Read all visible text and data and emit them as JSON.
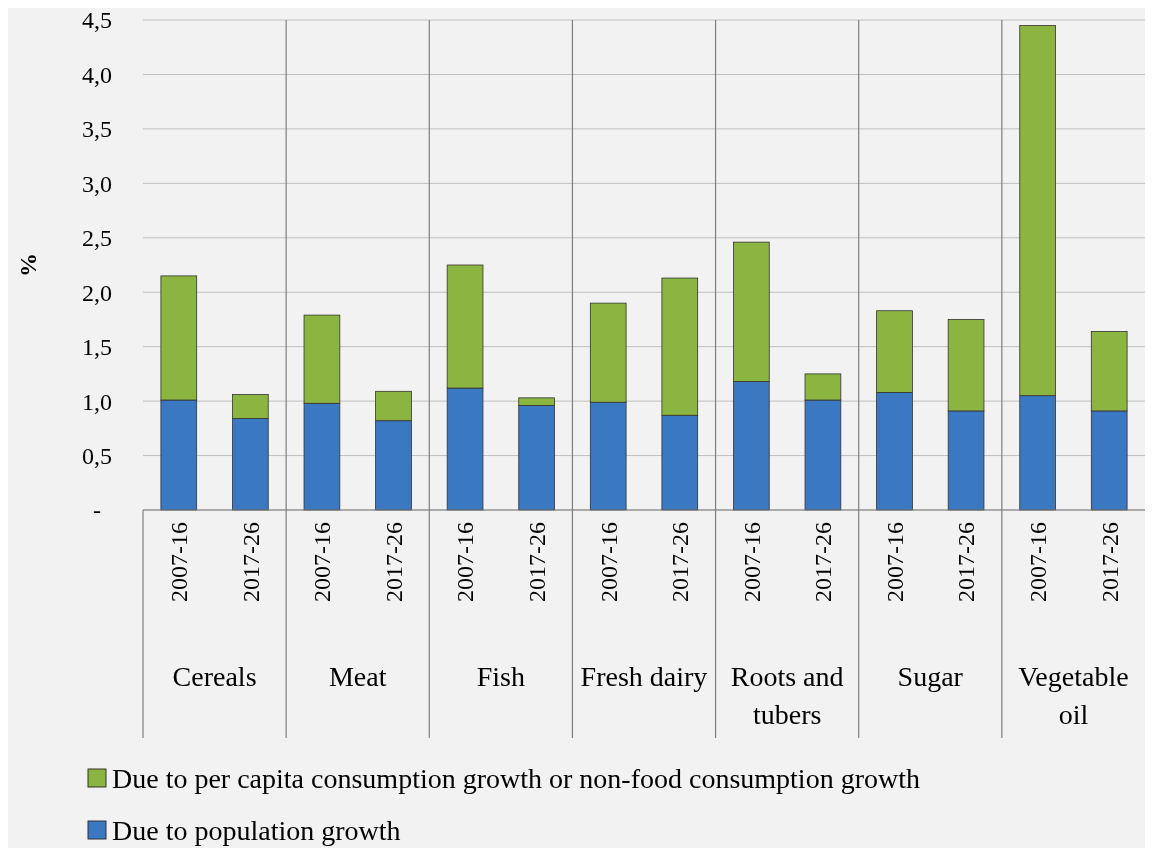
{
  "chart_data": {
    "type": "bar",
    "stacked": true,
    "ylabel": "%",
    "categories": [
      "2007-16",
      "2017-26",
      "2007-16",
      "2017-26",
      "2007-16",
      "2017-26",
      "2007-16",
      "2017-26",
      "2007-16",
      "2017-26",
      "2007-16",
      "2017-26",
      "2007-16",
      "2017-26"
    ],
    "annotations": [
      "Cereals",
      "Meat",
      "Fish",
      "Fresh dairy",
      "Roots and tubers",
      "Sugar",
      "Vegetable oil"
    ],
    "series": [
      {
        "name": "Due to population growth",
        "color": "#3a78c2",
        "values": [
          1.01,
          0.84,
          0.98,
          0.82,
          1.12,
          0.96,
          0.99,
          0.87,
          1.18,
          1.01,
          1.08,
          0.91,
          1.05,
          0.91
        ]
      },
      {
        "name": "Due to per capita consumption growth or non-food consumption growth",
        "color": "#8cb440",
        "values": [
          1.14,
          0.22,
          0.81,
          0.27,
          1.13,
          0.07,
          0.91,
          1.26,
          1.28,
          0.24,
          0.75,
          0.84,
          3.4,
          0.73
        ]
      }
    ],
    "ylim": [
      0,
      4.5
    ],
    "yticks": [
      {
        "value": 0,
        "label": "-"
      },
      {
        "value": 0.5,
        "label": "0,5"
      },
      {
        "value": 1,
        "label": "1,0"
      },
      {
        "value": 1.5,
        "label": "1,5"
      },
      {
        "value": 2,
        "label": "2,0"
      },
      {
        "value": 2.5,
        "label": "2,5"
      },
      {
        "value": 3,
        "label": "3,0"
      },
      {
        "value": 3.5,
        "label": "3,5"
      },
      {
        "value": 4,
        "label": "4,0"
      },
      {
        "value": 4.5,
        "label": "4,5"
      }
    ],
    "grid": "y",
    "legend": "bottom"
  }
}
